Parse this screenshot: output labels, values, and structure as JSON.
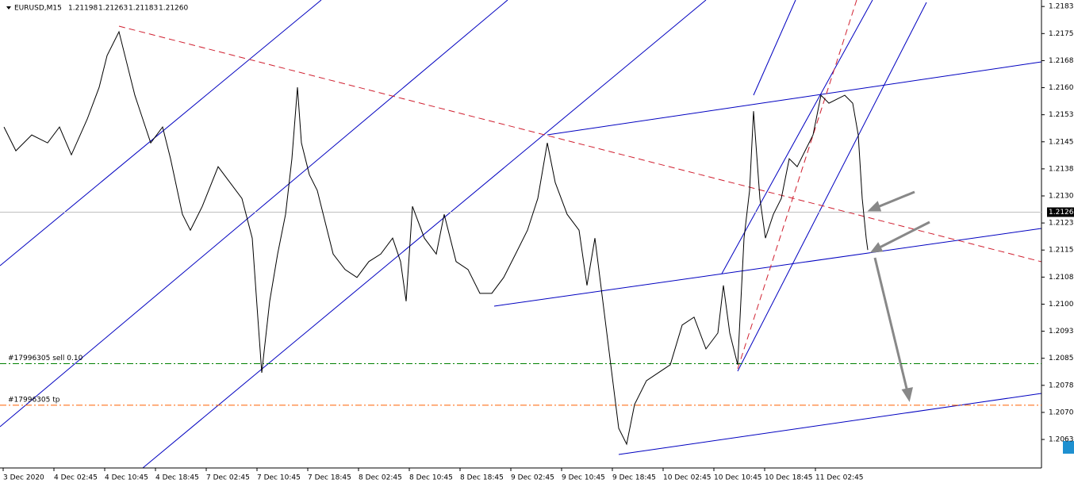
{
  "chart_data": {
    "type": "line",
    "title": "EURUSD,M15",
    "header_values": [
      {
        "value": 1.21198,
        "label": "1.21198"
      },
      {
        "value": 1.21263,
        "label": "1.21263"
      },
      {
        "value": 1.21183,
        "label": "1.21183"
      },
      {
        "value": 1.2126,
        "label": "1.21260"
      }
    ],
    "color": "#000000",
    "x": [
      0.5,
      8,
      18,
      28,
      35.5,
      43,
      53,
      60.5,
      65.5,
      73,
      78,
      83,
      88,
      93,
      100.5,
      105.5,
      113,
      118,
      125.5,
      135.5,
      143,
      150.5,
      157,
      160.5,
      163,
      168,
      173,
      178,
      182,
      185.5,
      188,
      193,
      198,
      203,
      208,
      215.5,
      223,
      230.5,
      238,
      245.5,
      250.5,
      254,
      258,
      265.5,
      273,
      278,
      285.5,
      293,
      300.5,
      308,
      315.5,
      323,
      330.5,
      337,
      343,
      348,
      355.5,
      363,
      368,
      373,
      378,
      383,
      388,
      393,
      398,
      405.5,
      413,
      420.5,
      428,
      435.5,
      443,
      450.5,
      454,
      458,
      463,
      467,
      470.5,
      473,
      477,
      480.5,
      485.5,
      490.5,
      495.5,
      500.5,
      505.5,
      510.5,
      515.5,
      520.5,
      525.5,
      530.5,
      535.5,
      539,
      541.5,
      544,
      545
    ],
    "values": [
      1.21496,
      1.2143,
      1.21474,
      1.21452,
      1.21496,
      1.21419,
      1.21518,
      1.21606,
      1.21694,
      1.2176,
      1.21672,
      1.21584,
      1.21518,
      1.21452,
      1.21496,
      1.21408,
      1.21254,
      1.2121,
      1.21276,
      1.21386,
      1.21342,
      1.21298,
      1.21188,
      1.20969,
      1.20815,
      1.21013,
      1.21144,
      1.21254,
      1.21408,
      1.21606,
      1.21452,
      1.21364,
      1.2132,
      1.21232,
      1.21144,
      1.21101,
      1.21079,
      1.21123,
      1.21144,
      1.21188,
      1.21123,
      1.21013,
      1.21276,
      1.21188,
      1.21144,
      1.21254,
      1.21123,
      1.21101,
      1.21035,
      1.21035,
      1.21079,
      1.21144,
      1.2121,
      1.21298,
      1.21452,
      1.21342,
      1.21254,
      1.2121,
      1.21057,
      1.21188,
      1.21013,
      1.20837,
      1.20661,
      1.20617,
      1.20727,
      1.20793,
      1.20815,
      1.20837,
      1.20947,
      1.20969,
      1.20881,
      1.20925,
      1.21057,
      1.20925,
      1.20837,
      1.21188,
      1.2132,
      1.2154,
      1.21298,
      1.21188,
      1.21254,
      1.21298,
      1.21408,
      1.21386,
      1.2143,
      1.21474,
      1.21584,
      1.21562,
      1.21573,
      1.21584,
      1.21562,
      1.21474,
      1.21298,
      1.21188,
      1.21155
    ],
    "xlim": [
      -2,
      654.5
    ],
    "ylim": [
      1.20551,
      1.21848
    ],
    "xticks": [
      {
        "value": 0,
        "label": "3 Dec 2020"
      },
      {
        "value": 32,
        "label": "4 Dec 02:45"
      },
      {
        "value": 64,
        "label": "4 Dec 10:45"
      },
      {
        "value": 96,
        "label": "4 Dec 18:45"
      },
      {
        "value": 128,
        "label": "7 Dec 02:45"
      },
      {
        "value": 160,
        "label": "7 Dec 10:45"
      },
      {
        "value": 192,
        "label": "7 Dec 18:45"
      },
      {
        "value": 224,
        "label": "8 Dec 02:45"
      },
      {
        "value": 256,
        "label": "8 Dec 10:45"
      },
      {
        "value": 288,
        "label": "8 Dec 18:45"
      },
      {
        "value": 320,
        "label": "9 Dec 02:45"
      },
      {
        "value": 352,
        "label": "9 Dec 10:45"
      },
      {
        "value": 384,
        "label": "9 Dec 18:45"
      },
      {
        "value": 416,
        "label": "10 Dec 02:45"
      },
      {
        "value": 448,
        "label": "10 Dec 10:45"
      },
      {
        "value": 480,
        "label": "10 Dec 18:45"
      },
      {
        "value": 512,
        "label": "11 Dec 02:45"
      }
    ],
    "yticks": [
      {
        "value": 1.2183,
        "label": "1.21830"
      },
      {
        "value": 1.21755,
        "label": "1.21755"
      },
      {
        "value": 1.2168,
        "label": "1.21680"
      },
      {
        "value": 1.21605,
        "label": "1.21605"
      },
      {
        "value": 1.2153,
        "label": "1.21530"
      },
      {
        "value": 1.21455,
        "label": "1.21455"
      },
      {
        "value": 1.2138,
        "label": "1.21380"
      },
      {
        "value": 1.21305,
        "label": "1.21305"
      },
      {
        "value": 1.2123,
        "label": "1.21230"
      },
      {
        "value": 1.21155,
        "label": "1.21155"
      },
      {
        "value": 1.2108,
        "label": "1.21080"
      },
      {
        "value": 1.21005,
        "label": "1.21005"
      },
      {
        "value": 1.2093,
        "label": "1.20930"
      },
      {
        "value": 1.20855,
        "label": "1.20855"
      },
      {
        "value": 1.2078,
        "label": "1.20780"
      },
      {
        "value": 1.20705,
        "label": "1.20705"
      },
      {
        "value": 1.2063,
        "label": "1.20630"
      }
    ],
    "current_price": {
      "value": 1.2126,
      "label": "1.21260"
    },
    "orders": [
      {
        "label": "#17996305 sell 0.10",
        "price": 1.2084,
        "color": "#008000"
      },
      {
        "label": "#17996305 tp",
        "price": 1.20725,
        "color": "#ff6000"
      }
    ]
  }
}
